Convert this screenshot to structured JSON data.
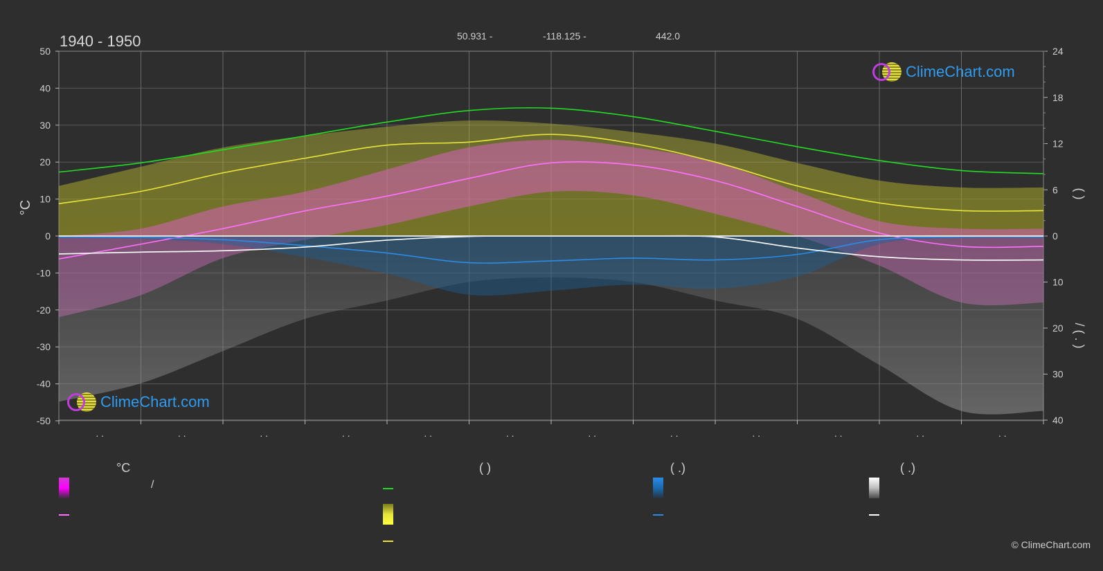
{
  "header": {
    "period": "1940 - 1950",
    "latitude": "50.931 -",
    "longitude": "-118.125 -",
    "elevation": "442.0"
  },
  "brand": {
    "logo_text": "ClimeChart.com",
    "copyright": "© ClimeChart.com"
  },
  "chart_data": {
    "type": "line",
    "left_axis": {
      "label": "°C",
      "ticks": [
        "50",
        "40",
        "30",
        "20",
        "10",
        "0",
        "-10",
        "-20",
        "-30",
        "-40",
        "-50"
      ],
      "ylim": [
        -50,
        50
      ]
    },
    "right_axis_top": {
      "label": "(   )",
      "ticks": [
        "24",
        "18",
        "12",
        "6",
        "0"
      ],
      "ylim": [
        0,
        24
      ]
    },
    "right_axis_bottom": {
      "label": "/   ( . )",
      "ticks": [
        "10",
        "20",
        "30",
        "40"
      ],
      "ylim": [
        0,
        40
      ]
    },
    "x_ticks": [
      ". .",
      ". .",
      ". .",
      ". .",
      ". .",
      ". .",
      ". .",
      ". .",
      ". .",
      ". .",
      ". .",
      ". ."
    ],
    "months": 12,
    "series": [
      {
        "key": "daylight",
        "color": "#22dd22",
        "axis": "hours",
        "values": [
          8.3,
          9.5,
          11.2,
          13.0,
          14.8,
          16.3,
          16.6,
          15.5,
          13.6,
          11.6,
          9.8,
          8.5,
          8.1
        ]
      },
      {
        "key": "sunshine",
        "color": "#e8e43a",
        "axis": "hours",
        "values": [
          4.2,
          5.8,
          8.2,
          10.1,
          11.8,
          12.2,
          13.2,
          12.0,
          9.6,
          6.5,
          4.3,
          3.3,
          3.3
        ]
      },
      {
        "key": "max_temp",
        "color": "#ff70ff",
        "axis": "celsius",
        "values": [
          -6.2,
          -2.2,
          2.0,
          6.8,
          10.8,
          15.6,
          19.8,
          19.2,
          15.0,
          8.0,
          0.8,
          -2.8,
          -2.8
        ]
      },
      {
        "key": "rain",
        "color": "#2a8ce6",
        "axis": "mm",
        "values": [
          0.2,
          0.3,
          0.8,
          2.1,
          3.7,
          5.8,
          5.4,
          4.8,
          5.2,
          4.0,
          0.8,
          0.2,
          0.2
        ]
      },
      {
        "key": "snow",
        "color": "#ffffff",
        "axis": "mm",
        "values": [
          3.9,
          3.5,
          3.2,
          2.4,
          0.9,
          0.1,
          0.0,
          0.0,
          0.2,
          2.6,
          4.5,
          5.2,
          5.2
        ]
      }
    ],
    "bands": [
      {
        "key": "sunshine_band",
        "color": "#b8b838",
        "axis": "hours",
        "top": [
          6.5,
          9.0,
          11.5,
          13.0,
          14.2,
          15.0,
          14.6,
          13.5,
          12.0,
          9.5,
          7.2,
          6.3,
          6.3
        ]
      },
      {
        "key": "temp_band",
        "color": "#e060c8",
        "axis": "celsius",
        "top": [
          0,
          2,
          8,
          12,
          18,
          24,
          26,
          24,
          20,
          12,
          4,
          2,
          2
        ],
        "bottom": [
          -22,
          -16,
          -6,
          -1,
          3,
          8,
          12,
          11,
          6,
          0,
          -8,
          -18,
          -18
        ]
      },
      {
        "key": "precip_band",
        "color": "#8a8a8a",
        "axis": "mm",
        "top": [
          36,
          32,
          25,
          18,
          14,
          10,
          9,
          10,
          14,
          18,
          28,
          38,
          38
        ]
      }
    ],
    "grid": true
  },
  "legend": {
    "col1": {
      "heading": "°C",
      "item1_sep": "/"
    },
    "col2": {
      "heading": "(          )"
    },
    "col3": {
      "heading": "(   .)"
    },
    "col4": {
      "heading": "(   .)"
    }
  }
}
